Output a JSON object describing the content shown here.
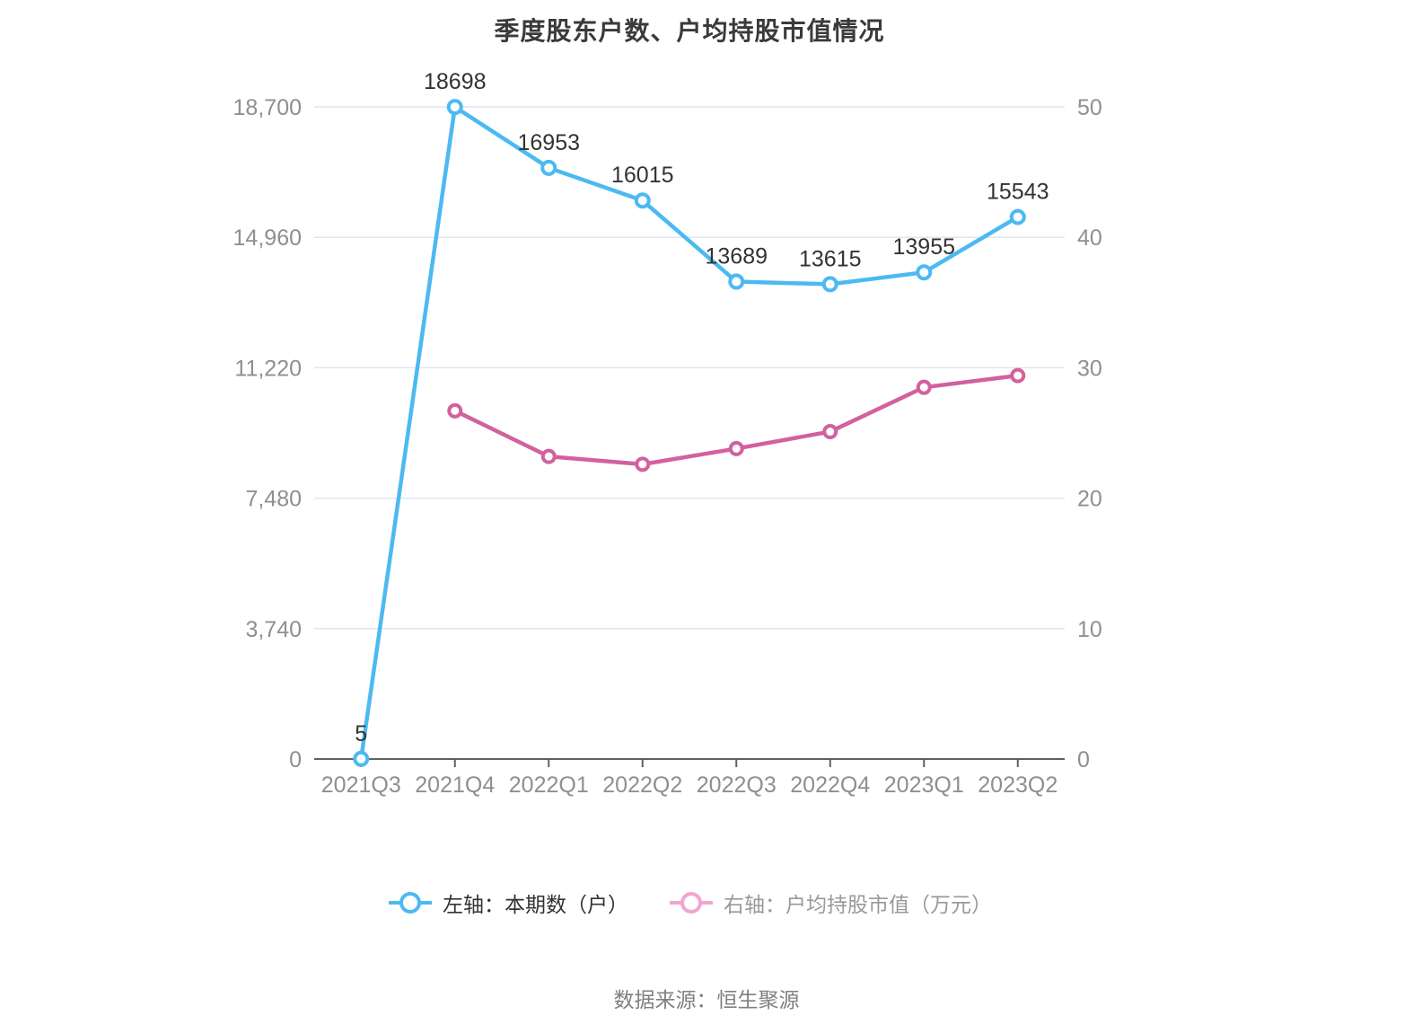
{
  "title": "季度股东户数、户均持股市值情况",
  "source": "数据来源：恒生聚源",
  "legend": [
    {
      "label": "左轴：本期数（户）",
      "marker_color": "#4db9f2",
      "text_color": "#333333"
    },
    {
      "label": "右轴：户均持股市值（万元）",
      "marker_color": "#f0a6ce",
      "text_color": "#999999"
    }
  ],
  "colors": {
    "blue_line": "#4db9f2",
    "pink_line": "#d2619e",
    "grid_line": "#e2e5f1",
    "axis_line": "#606060",
    "axis_text": "#8f8f8f",
    "data_label": "#333333",
    "title_text": "#3a3a3a"
  },
  "chart_data": {
    "type": "line",
    "title": "季度股东户数、户均持股市值情况",
    "categories": [
      "2021Q3",
      "2021Q4",
      "2022Q1",
      "2022Q2",
      "2022Q3",
      "2022Q4",
      "2023Q1",
      "2023Q2"
    ],
    "series": [
      {
        "name": "左轴：本期数（户）",
        "axis": "left",
        "color": "#4db9f2",
        "values": [
          5,
          18698,
          16953,
          16015,
          13689,
          13615,
          13955,
          15543
        ],
        "data_labels": true
      },
      {
        "name": "右轴：户均持股市值（万元）",
        "axis": "right",
        "color": "#d2619e",
        "values": [
          null,
          26.7,
          23.2,
          22.6,
          23.8,
          25.1,
          28.5,
          29.4
        ],
        "data_labels": false
      }
    ],
    "left_axis": {
      "max": 18700,
      "ticks": [
        0,
        3740,
        7480,
        11220,
        14960,
        18700
      ],
      "labels": [
        "0",
        "3,740",
        "7,480",
        "11,220",
        "14,960",
        "18,700"
      ]
    },
    "right_axis": {
      "max": 50,
      "ticks": [
        0,
        10,
        20,
        30,
        40,
        50
      ],
      "labels": [
        "0",
        "10",
        "20",
        "30",
        "40",
        "50"
      ]
    },
    "grid": true,
    "legend_position": "bottom"
  }
}
